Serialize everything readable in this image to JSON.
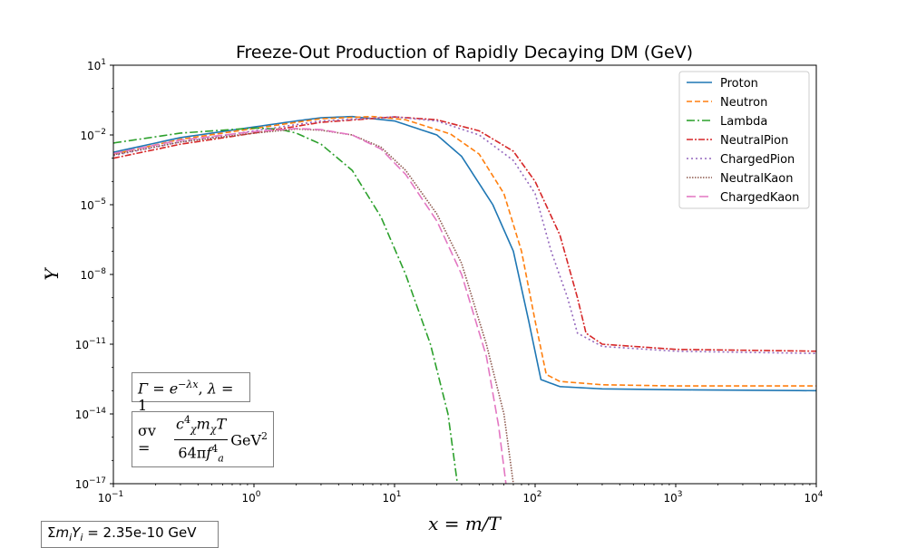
{
  "chart_data": {
    "type": "line",
    "title": "Freeze-Out Production of Rapidly Decaying DM (GeV)",
    "xlabel": "x = m/T",
    "ylabel": "Y",
    "xscale": "log",
    "yscale": "log",
    "xlim": [
      0.1,
      10000
    ],
    "ylim": [
      1e-17,
      10
    ],
    "x_ticks": [
      {
        "base": "10",
        "exp": "−1"
      },
      {
        "base": "10",
        "exp": "0"
      },
      {
        "base": "10",
        "exp": "1"
      },
      {
        "base": "10",
        "exp": "2"
      },
      {
        "base": "10",
        "exp": "3"
      },
      {
        "base": "10",
        "exp": "4"
      }
    ],
    "y_ticks": [
      {
        "base": "10",
        "exp": "−17"
      },
      {
        "base": "10",
        "exp": "−14"
      },
      {
        "base": "10",
        "exp": "−11"
      },
      {
        "base": "10",
        "exp": "−8"
      },
      {
        "base": "10",
        "exp": "−5"
      },
      {
        "base": "10",
        "exp": "−2"
      },
      {
        "base": "10",
        "exp": "1"
      }
    ],
    "legend_position": "top-right",
    "grid": false,
    "series": [
      {
        "name": "Proton",
        "color": "#1f77b4",
        "dash": "solid",
        "points": [
          [
            0.1,
            0.0018
          ],
          [
            0.3,
            0.0077
          ],
          [
            1,
            0.022
          ],
          [
            2,
            0.04
          ],
          [
            3,
            0.055
          ],
          [
            5,
            0.062
          ],
          [
            10,
            0.04
          ],
          [
            20,
            0.01
          ],
          [
            30,
            0.0012
          ],
          [
            50,
            1e-05
          ],
          [
            70,
            1e-07
          ],
          [
            90,
            1e-10
          ],
          [
            110,
            3e-13
          ],
          [
            150,
            1.5e-13
          ],
          [
            300,
            1.2e-13
          ],
          [
            1000,
            1.1e-13
          ],
          [
            10000,
            1e-13
          ]
        ]
      },
      {
        "name": "Neutron",
        "color": "#ff7f0e",
        "dash": "dashed",
        "points": [
          [
            0.1,
            0.0015
          ],
          [
            0.3,
            0.0065
          ],
          [
            1,
            0.019
          ],
          [
            3,
            0.05
          ],
          [
            7,
            0.062
          ],
          [
            12,
            0.045
          ],
          [
            25,
            0.011
          ],
          [
            40,
            0.0015
          ],
          [
            60,
            3e-05
          ],
          [
            80,
            1e-07
          ],
          [
            100,
            1e-10
          ],
          [
            120,
            5e-13
          ],
          [
            150,
            2.5e-13
          ],
          [
            300,
            1.8e-13
          ],
          [
            1000,
            1.6e-13
          ],
          [
            10000,
            1.6e-13
          ]
        ]
      },
      {
        "name": "Lambda",
        "color": "#2ca02c",
        "dash": "dashdot",
        "points": [
          [
            0.1,
            0.0045
          ],
          [
            0.3,
            0.012
          ],
          [
            1,
            0.02
          ],
          [
            1.5,
            0.018
          ],
          [
            2,
            0.012
          ],
          [
            3,
            0.004
          ],
          [
            5,
            0.0003
          ],
          [
            8,
            3e-06
          ],
          [
            12,
            1e-08
          ],
          [
            18,
            1e-11
          ],
          [
            24,
            1e-14
          ],
          [
            28,
            1e-17
          ]
        ]
      },
      {
        "name": "NeutralPion",
        "color": "#d62728",
        "dash": "dashdot-tight",
        "points": [
          [
            0.1,
            0.001
          ],
          [
            0.3,
            0.004
          ],
          [
            1,
            0.012
          ],
          [
            3,
            0.035
          ],
          [
            10,
            0.06
          ],
          [
            20,
            0.045
          ],
          [
            40,
            0.015
          ],
          [
            70,
            0.002
          ],
          [
            100,
            0.0001
          ],
          [
            150,
            5e-07
          ],
          [
            200,
            1e-09
          ],
          [
            230,
            3e-11
          ],
          [
            300,
            1e-11
          ],
          [
            1000,
            6e-12
          ],
          [
            10000,
            5e-12
          ]
        ]
      },
      {
        "name": "ChargedPion",
        "color": "#9467bd",
        "dash": "dotted",
        "points": [
          [
            0.1,
            0.0013
          ],
          [
            0.3,
            0.005
          ],
          [
            1,
            0.015
          ],
          [
            3,
            0.04
          ],
          [
            10,
            0.06
          ],
          [
            20,
            0.04
          ],
          [
            40,
            0.01
          ],
          [
            70,
            0.0008
          ],
          [
            100,
            3e-05
          ],
          [
            130,
            1e-07
          ],
          [
            170,
            1e-09
          ],
          [
            200,
            3e-11
          ],
          [
            300,
            8e-12
          ],
          [
            1000,
            5e-12
          ],
          [
            10000,
            4e-12
          ]
        ]
      },
      {
        "name": "NeutralKaon",
        "color": "#8c564b",
        "dash": "dotted-dense",
        "points": [
          [
            0.1,
            0.0014
          ],
          [
            0.3,
            0.005
          ],
          [
            1,
            0.012
          ],
          [
            2,
            0.018
          ],
          [
            3,
            0.016
          ],
          [
            5,
            0.01
          ],
          [
            8,
            0.003
          ],
          [
            12,
            0.0003
          ],
          [
            20,
            4e-06
          ],
          [
            30,
            3e-08
          ],
          [
            45,
            1e-11
          ],
          [
            60,
            1e-14
          ],
          [
            70,
            1e-17
          ]
        ]
      },
      {
        "name": "ChargedKaon",
        "color": "#e377c2",
        "dash": "longdash",
        "points": [
          [
            0.1,
            0.0016
          ],
          [
            0.3,
            0.006
          ],
          [
            1,
            0.014
          ],
          [
            2,
            0.019
          ],
          [
            3,
            0.017
          ],
          [
            5,
            0.01
          ],
          [
            8,
            0.0025
          ],
          [
            12,
            0.0002
          ],
          [
            20,
            2e-06
          ],
          [
            30,
            1e-08
          ],
          [
            45,
            3e-12
          ],
          [
            55,
            3e-15
          ],
          [
            62,
            1e-17
          ]
        ]
      }
    ]
  },
  "annotations": {
    "gamma": {
      "lhs": "Γ",
      "eq": "=",
      "e": "e",
      "exp": "−λx",
      "sep": ",",
      "lam": "λ",
      "val": "= 1"
    },
    "sigma": {
      "lhs": "σv =",
      "num_c": "c",
      "num_c_sup": "4",
      "num_c_sub": "χ",
      "num_m": "m",
      "num_m_sub": "χ",
      "num_T": "T",
      "den_pre": "64π",
      "den_f": "f",
      "den_f_sup": "4",
      "den_f_sub": "a",
      "unit": "GeV",
      "unit_sup": "2"
    },
    "sum": {
      "sigma": "Σ",
      "m": "m",
      "m_sub": "i",
      "Y": "Y",
      "Y_sub": "i",
      "value": "= 2.35e-10 GeV"
    }
  }
}
